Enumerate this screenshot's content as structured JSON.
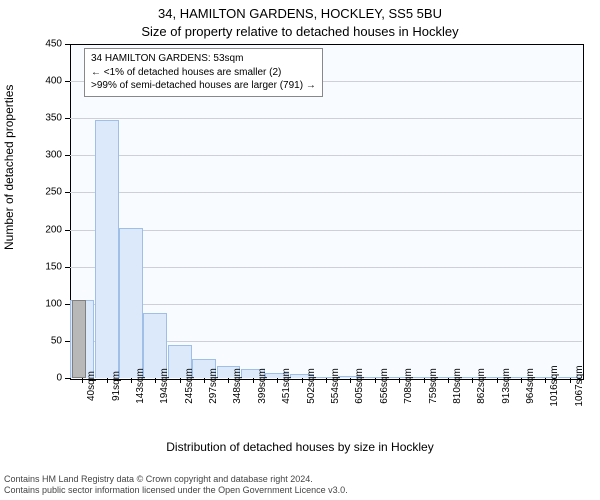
{
  "header": {
    "address_line": "34, HAMILTON GARDENS, HOCKLEY, SS5 5BU",
    "subtitle": "Size of property relative to detached houses in Hockley"
  },
  "chart": {
    "type": "histogram",
    "background_color": "#f8fbff",
    "grid_color": "#cfcfd8",
    "axis_color": "#000000",
    "bar_fill": "#dbe9fb",
    "bar_stroke": "#9fbfe6",
    "highlight_fill": "#b8b8b8",
    "highlight_stroke": "#808080",
    "ylabel": "Number of detached properties",
    "xlabel": "Distribution of detached houses by size in Hockley",
    "ylim": [
      0,
      450
    ],
    "ytick_step": 50,
    "yticks": [
      0,
      50,
      100,
      150,
      200,
      250,
      300,
      350,
      400,
      450
    ],
    "xticks": [
      "40sqm",
      "91sqm",
      "143sqm",
      "194sqm",
      "245sqm",
      "297sqm",
      "348sqm",
      "399sqm",
      "451sqm",
      "502sqm",
      "554sqm",
      "605sqm",
      "656sqm",
      "708sqm",
      "759sqm",
      "810sqm",
      "862sqm",
      "913sqm",
      "964sqm",
      "1016sqm",
      "1067sqm"
    ],
    "label_fontsize": 12,
    "tick_fontsize": 10,
    "highlight_bar_index": 0,
    "highlight_bar_value": 105,
    "bars": [
      105,
      347,
      202,
      88,
      45,
      26,
      16,
      12,
      7,
      6,
      2,
      3,
      2,
      1,
      1,
      1,
      0,
      1,
      0,
      0,
      1
    ]
  },
  "legend": {
    "line1": "34 HAMILTON GARDENS: 53sqm",
    "line2": "← <1% of detached houses are smaller (2)",
    "line3": ">99% of semi-detached houses are larger (791) →"
  },
  "footer": {
    "line1": "Contains HM Land Registry data © Crown copyright and database right 2024.",
    "line2": "Contains public sector information licensed under the Open Government Licence v3.0."
  }
}
